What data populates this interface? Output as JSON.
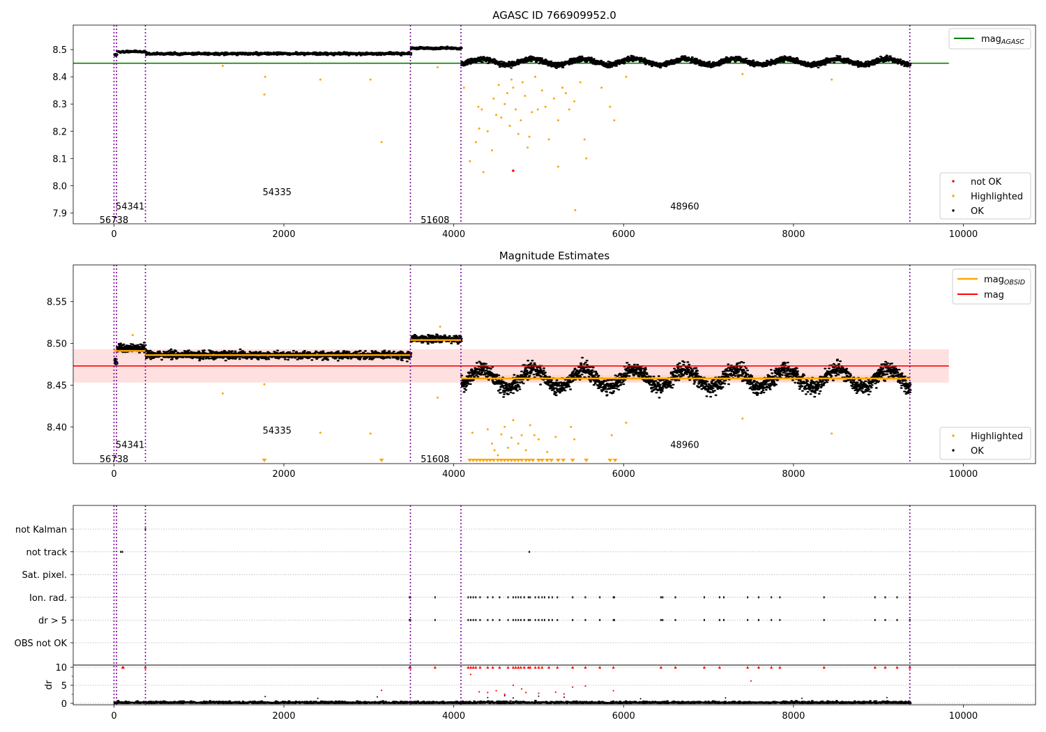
{
  "chart_data": [
    {
      "type": "scatter",
      "title": "AGASC ID 766909952.0",
      "xlim": [
        -480,
        10850
      ],
      "ylim": [
        7.86,
        8.59
      ],
      "x_ticks": [
        0,
        2000,
        4000,
        6000,
        8000,
        10000
      ],
      "y_ticks": [
        7.9,
        8.0,
        8.1,
        8.2,
        8.3,
        8.4,
        8.5
      ],
      "obsid_boundaries": [
        0,
        30,
        370,
        3490,
        4085,
        9370
      ],
      "obsid_labels": [
        {
          "text": "56738",
          "x": 0,
          "y": 7.875
        },
        {
          "text": "54341",
          "x": 190,
          "y": 7.925
        },
        {
          "text": "54335",
          "x": 1920,
          "y": 7.978
        },
        {
          "text": "51608",
          "x": 3780,
          "y": 7.875
        },
        {
          "text": "48960",
          "x": 6720,
          "y": 7.925
        }
      ],
      "reference_line": {
        "name": "mag_AGASC",
        "label_main": "mag",
        "label_sub": "AGASC",
        "value": 8.45,
        "x": [
          -480,
          9830
        ],
        "color": "#008000"
      },
      "ok_segments": [
        {
          "x": [
            0,
            30
          ],
          "mean": 8.48,
          "spread": 0.008
        },
        {
          "x": [
            30,
            370
          ],
          "mean": 8.492,
          "spread": 0.006
        },
        {
          "x": [
            370,
            3490
          ],
          "mean": 8.485,
          "spread": 0.006
        },
        {
          "x": [
            3490,
            4085
          ],
          "mean": 8.505,
          "spread": 0.006
        },
        {
          "x": [
            4085,
            9370
          ],
          "mean": 8.455,
          "spread": 0.012
        }
      ],
      "highlighted_points": [
        [
          1770,
          8.335
        ],
        [
          1780,
          8.4
        ],
        [
          1280,
          8.44
        ],
        [
          2430,
          8.39
        ],
        [
          3020,
          8.39
        ],
        [
          3150,
          8.16
        ],
        [
          3810,
          8.435
        ],
        [
          4120,
          8.36
        ],
        [
          4190,
          8.09
        ],
        [
          4260,
          8.16
        ],
        [
          4290,
          8.29
        ],
        [
          4300,
          8.21
        ],
        [
          4330,
          8.28
        ],
        [
          4350,
          8.05
        ],
        [
          4400,
          8.2
        ],
        [
          4450,
          8.13
        ],
        [
          4470,
          8.32
        ],
        [
          4500,
          8.26
        ],
        [
          4530,
          8.37
        ],
        [
          4560,
          8.25
        ],
        [
          4600,
          8.3
        ],
        [
          4630,
          8.34
        ],
        [
          4660,
          8.22
        ],
        [
          4680,
          8.39
        ],
        [
          4700,
          8.36
        ],
        [
          4730,
          8.28
        ],
        [
          4760,
          8.19
        ],
        [
          4790,
          8.24
        ],
        [
          4810,
          8.38
        ],
        [
          4840,
          8.33
        ],
        [
          4870,
          8.14
        ],
        [
          4890,
          8.18
        ],
        [
          4920,
          8.27
        ],
        [
          4960,
          8.4
        ],
        [
          4990,
          8.28
        ],
        [
          5040,
          8.35
        ],
        [
          5080,
          8.29
        ],
        [
          5120,
          8.17
        ],
        [
          5180,
          8.32
        ],
        [
          5230,
          8.24
        ],
        [
          5280,
          8.36
        ],
        [
          5320,
          8.34
        ],
        [
          5360,
          8.28
        ],
        [
          5420,
          8.31
        ],
        [
          5490,
          8.38
        ],
        [
          5540,
          8.17
        ],
        [
          5560,
          8.1
        ],
        [
          5740,
          8.36
        ],
        [
          5840,
          8.29
        ],
        [
          5890,
          8.24
        ],
        [
          5230,
          8.07
        ],
        [
          5430,
          7.91
        ],
        [
          6030,
          8.4
        ],
        [
          7400,
          8.41
        ],
        [
          8450,
          8.39
        ]
      ],
      "not_ok_points": [
        [
          4700,
          8.055
        ]
      ],
      "legend_lines": [
        "mag_AGASC"
      ],
      "legend_points": [
        "not OK",
        "Highlighted",
        "OK"
      ]
    },
    {
      "type": "scatter",
      "title": "Magnitude Estimates",
      "xlim": [
        -480,
        10850
      ],
      "ylim": [
        8.356,
        8.594
      ],
      "x_ticks": [
        0,
        2000,
        4000,
        6000,
        8000,
        10000
      ],
      "y_ticks": [
        8.4,
        8.45,
        8.5,
        8.55
      ],
      "obsid_boundaries": [
        0,
        30,
        370,
        3490,
        4085,
        9370
      ],
      "obsid_labels": [
        {
          "text": "56738",
          "x": 0,
          "y": 8.362
        },
        {
          "text": "54341",
          "x": 190,
          "y": 8.379
        },
        {
          "text": "54335",
          "x": 1920,
          "y": 8.396
        },
        {
          "text": "51608",
          "x": 3780,
          "y": 8.362
        },
        {
          "text": "48960",
          "x": 6720,
          "y": 8.379
        }
      ],
      "mag_line": {
        "name": "mag",
        "value": 8.473,
        "band": [
          8.453,
          8.493
        ],
        "x": [
          -480,
          9830
        ],
        "color": "#ff0000"
      },
      "obsid_mags": [
        {
          "x": [
            0,
            370
          ],
          "mag": 8.491
        },
        {
          "x": [
            370,
            3490
          ],
          "mag": 8.486
        },
        {
          "x": [
            3490,
            4085
          ],
          "mag": 8.504
        },
        {
          "x": [
            4085,
            9370
          ],
          "mag": 8.458
        }
      ],
      "ok_segments": [
        {
          "x": [
            0,
            30
          ],
          "mean": 8.478,
          "spread": 0.006
        },
        {
          "x": [
            30,
            370
          ],
          "mean": 8.494,
          "spread": 0.006
        },
        {
          "x": [
            370,
            3490
          ],
          "mean": 8.486,
          "spread": 0.006
        },
        {
          "x": [
            3490,
            4085
          ],
          "mean": 8.505,
          "spread": 0.006
        },
        {
          "x": [
            4085,
            9370
          ],
          "mean": 8.458,
          "spread": 0.012
        }
      ],
      "highlighted_points": [
        [
          220,
          8.51
        ],
        [
          1280,
          8.44
        ],
        [
          1770,
          8.451
        ],
        [
          2430,
          8.393
        ],
        [
          3020,
          8.392
        ],
        [
          3810,
          8.435
        ],
        [
          3840,
          8.52
        ],
        [
          6030,
          8.405
        ],
        [
          7400,
          8.41
        ],
        [
          8450,
          8.392
        ],
        [
          4220,
          8.393
        ],
        [
          4400,
          8.397
        ],
        [
          4450,
          8.38
        ],
        [
          4480,
          8.372
        ],
        [
          4520,
          8.366
        ],
        [
          4560,
          8.391
        ],
        [
          4600,
          8.4
        ],
        [
          4640,
          8.375
        ],
        [
          4680,
          8.387
        ],
        [
          4700,
          8.408
        ],
        [
          4760,
          8.38
        ],
        [
          4800,
          8.39
        ],
        [
          4850,
          8.372
        ],
        [
          4900,
          8.402
        ],
        [
          4950,
          8.39
        ],
        [
          5000,
          8.385
        ],
        [
          5100,
          8.37
        ],
        [
          5200,
          8.388
        ],
        [
          5380,
          8.4
        ],
        [
          5420,
          8.385
        ],
        [
          5860,
          8.39
        ]
      ],
      "low_markers": [
        1770,
        3150,
        4190,
        4230,
        4270,
        4310,
        4350,
        4390,
        4430,
        4470,
        4520,
        4560,
        4600,
        4640,
        4680,
        4720,
        4760,
        4800,
        4850,
        4890,
        4930,
        5000,
        5040,
        5100,
        5150,
        5230,
        5290,
        5400,
        5560,
        5840,
        5900
      ],
      "legend_lines": [
        "mag_OBSID",
        "mag"
      ],
      "legend_points": [
        "Highlighted",
        "OK"
      ]
    },
    {
      "type": "scatter",
      "title": "",
      "xlim": [
        -480,
        10850
      ],
      "x_ticks": [
        0,
        2000,
        4000,
        6000,
        8000,
        10000
      ],
      "obsid_boundaries": [
        0,
        30,
        370,
        3490,
        4085,
        9370
      ],
      "flag_rows": [
        "not Kalman",
        "not track",
        "Sat. pixel.",
        "Ion. rad.",
        "dr > 5",
        "OBS not OK"
      ],
      "flags": {
        "not Kalman": [
          370
        ],
        "not track": [
          80,
          100,
          4890
        ],
        "Sat. pixel.": [],
        "Ion. rad.": [
          3480,
          3490,
          3780,
          4170,
          4200,
          4230,
          4260,
          4310,
          4400,
          4460,
          4540,
          4640,
          4700,
          4730,
          4760,
          4790,
          4830,
          4880,
          4900,
          4960,
          5000,
          5040,
          5070,
          5120,
          5160,
          5220,
          5400,
          5550,
          5720,
          5880,
          5890,
          6440,
          6460,
          6610,
          6950,
          7130,
          7180,
          7460,
          7590,
          7740,
          7840,
          8360,
          8960,
          9080,
          9220,
          9370
        ],
        "dr > 5": [
          3480,
          3490,
          3780,
          4170,
          4200,
          4230,
          4260,
          4310,
          4400,
          4460,
          4540,
          4640,
          4700,
          4730,
          4760,
          4790,
          4830,
          4880,
          4900,
          4960,
          5000,
          5040,
          5070,
          5120,
          5160,
          5220,
          5400,
          5550,
          5720,
          5880,
          5890,
          6440,
          6460,
          6610,
          6950,
          7130,
          7180,
          7460,
          7590,
          7740,
          7840,
          8360,
          8960,
          9080,
          9220,
          9370
        ],
        "OBS not OK": []
      },
      "dr": {
        "ylabel": "dr",
        "ylim": [
          -0.4,
          10.6
        ],
        "y_ticks": [
          0,
          5,
          10
        ],
        "clip": 10,
        "typical_max": 0.7,
        "red_points": [
          [
            100,
            10
          ],
          [
            110,
            10
          ],
          [
            370,
            10
          ],
          [
            3480,
            10
          ],
          [
            3490,
            10
          ],
          [
            3780,
            10
          ],
          [
            4170,
            10
          ],
          [
            4200,
            10
          ],
          [
            4230,
            10
          ],
          [
            4260,
            10
          ],
          [
            4310,
            10
          ],
          [
            4400,
            10
          ],
          [
            4460,
            10
          ],
          [
            4540,
            10
          ],
          [
            4640,
            10
          ],
          [
            4700,
            10
          ],
          [
            4730,
            10
          ],
          [
            4760,
            10
          ],
          [
            4790,
            10
          ],
          [
            4830,
            10
          ],
          [
            4880,
            10
          ],
          [
            4900,
            10
          ],
          [
            4960,
            10
          ],
          [
            5000,
            10
          ],
          [
            5040,
            10
          ],
          [
            5120,
            10
          ],
          [
            5220,
            10
          ],
          [
            5400,
            10
          ],
          [
            5550,
            10
          ],
          [
            5720,
            10
          ],
          [
            5880,
            10
          ],
          [
            6440,
            10
          ],
          [
            6610,
            10
          ],
          [
            6950,
            10
          ],
          [
            7130,
            10
          ],
          [
            7460,
            10
          ],
          [
            7590,
            10
          ],
          [
            7740,
            10
          ],
          [
            7840,
            10
          ],
          [
            8360,
            10
          ],
          [
            8960,
            10
          ],
          [
            9080,
            10
          ],
          [
            9220,
            10
          ],
          [
            9370,
            10
          ],
          [
            3150,
            3.6
          ],
          [
            4200,
            8
          ],
          [
            7500,
            6.2
          ],
          [
            4300,
            3.2
          ],
          [
            4400,
            3
          ],
          [
            4500,
            3.5
          ],
          [
            4600,
            2.5
          ],
          [
            4700,
            5
          ],
          [
            4800,
            4
          ],
          [
            4850,
            3
          ],
          [
            5000,
            2.8
          ],
          [
            5200,
            3.1
          ],
          [
            5300,
            2.6
          ],
          [
            5400,
            4.5
          ],
          [
            5550,
            4.8
          ],
          [
            5880,
            3.5
          ]
        ],
        "black_points": [
          [
            1780,
            1.9
          ],
          [
            2400,
            1.4
          ],
          [
            3100,
            1.8
          ],
          [
            4400,
            1.6
          ],
          [
            4600,
            2.1
          ],
          [
            4700,
            1.5
          ],
          [
            5000,
            2.0
          ],
          [
            5300,
            1.7
          ],
          [
            6200,
            1.3
          ],
          [
            7200,
            1.5
          ],
          [
            8100,
            1.4
          ],
          [
            9100,
            1.6
          ]
        ]
      }
    }
  ]
}
